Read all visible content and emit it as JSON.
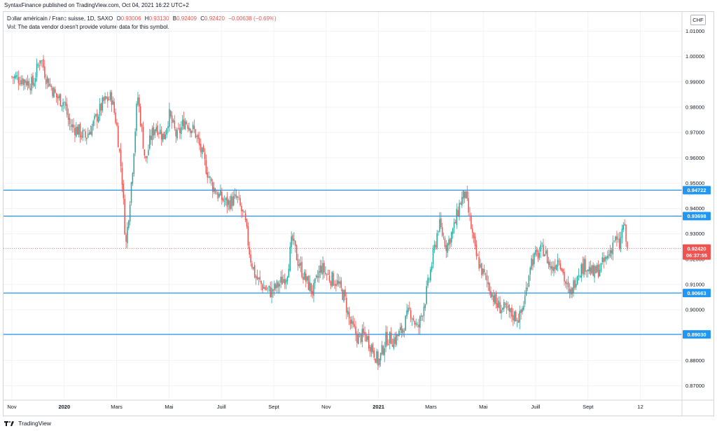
{
  "publisher": "SyntaxFinance published on TradingView.com, Oct 04, 2021 16:22 UTC+2",
  "legend": {
    "symbol": "Dollar américain / Franc suisse, 1D, SAXO",
    "o_label": "O",
    "o_value": "0.93006",
    "h_label": "H",
    "h_value": "0.93130",
    "b_label": "B",
    "b_value": "0.92409",
    "c_label": "C",
    "c_value": "0.92420",
    "change": "−0.00638 (−0.69%)"
  },
  "vol_note": "Vol: The data vendor doesn't provide volume data for this symbol.",
  "currency_button": "CHF",
  "footer_brand": "TradingView",
  "colors": {
    "up": "#26a69a",
    "down": "#ef5350",
    "level_line": "#2196f3",
    "grid": "#f0f3fa",
    "last_price": "#ef5350"
  },
  "chart_data": {
    "type": "candlestick",
    "symbol": "USD/CHF",
    "interval": "1D",
    "grid": true,
    "y_range": [
      0.865,
      1.015
    ],
    "y_ticks": [
      "1.01000",
      "1.00000",
      "0.99000",
      "0.98000",
      "0.97000",
      "0.96000",
      "0.95000",
      "0.94000",
      "0.93000",
      "0.92000",
      "0.91000",
      "0.90000",
      "0.89000",
      "0.88000",
      "0.87000"
    ],
    "x_labels": [
      {
        "label": "Nov",
        "month": 0
      },
      {
        "label": "2020",
        "month": 2
      },
      {
        "label": "Mars",
        "month": 4
      },
      {
        "label": "Mai",
        "month": 6
      },
      {
        "label": "Juill",
        "month": 8
      },
      {
        "label": "Sept",
        "month": 10
      },
      {
        "label": "Nov",
        "month": 12
      },
      {
        "label": "2021",
        "month": 14
      },
      {
        "label": "Mars",
        "month": 16
      },
      {
        "label": "Mai",
        "month": 18
      },
      {
        "label": "Juill",
        "month": 20
      },
      {
        "label": "Sept",
        "month": 22
      },
      {
        "label": "12",
        "month": 24
      }
    ],
    "horizontal_levels": [
      {
        "value": 0.94722,
        "label": "0.94722"
      },
      {
        "value": 0.93698,
        "label": "0.93698"
      },
      {
        "value": 0.90663,
        "label": "0.90663"
      },
      {
        "value": 0.8903,
        "label": "0.89030"
      }
    ],
    "last_price": {
      "value": 0.9242,
      "label": "0.92420",
      "countdown": "06:37:55"
    },
    "price_path": [
      {
        "month": 0.0,
        "close": 0.992
      },
      {
        "month": 0.4,
        "close": 0.991
      },
      {
        "month": 0.8,
        "close": 0.989
      },
      {
        "month": 1.1,
        "close": 1.0
      },
      {
        "month": 1.3,
        "close": 0.992
      },
      {
        "month": 1.7,
        "close": 0.984
      },
      {
        "month": 2.0,
        "close": 0.982
      },
      {
        "month": 2.2,
        "close": 0.973
      },
      {
        "month": 2.5,
        "close": 0.971
      },
      {
        "month": 2.8,
        "close": 0.968
      },
      {
        "month": 3.1,
        "close": 0.973
      },
      {
        "month": 3.5,
        "close": 0.982
      },
      {
        "month": 3.8,
        "close": 0.984
      },
      {
        "month": 4.0,
        "close": 0.973
      },
      {
        "month": 4.2,
        "close": 0.953
      },
      {
        "month": 4.35,
        "close": 0.925
      },
      {
        "month": 4.6,
        "close": 0.955
      },
      {
        "month": 4.8,
        "close": 0.985
      },
      {
        "month": 5.1,
        "close": 0.958
      },
      {
        "month": 5.3,
        "close": 0.968
      },
      {
        "month": 5.5,
        "close": 0.973
      },
      {
        "month": 5.8,
        "close": 0.968
      },
      {
        "month": 6.0,
        "close": 0.977
      },
      {
        "month": 6.3,
        "close": 0.968
      },
      {
        "month": 6.6,
        "close": 0.975
      },
      {
        "month": 7.0,
        "close": 0.97
      },
      {
        "month": 7.3,
        "close": 0.96
      },
      {
        "month": 7.6,
        "close": 0.95
      },
      {
        "month": 7.9,
        "close": 0.945
      },
      {
        "month": 8.2,
        "close": 0.942
      },
      {
        "month": 8.6,
        "close": 0.944
      },
      {
        "month": 8.9,
        "close": 0.935
      },
      {
        "month": 9.1,
        "close": 0.921
      },
      {
        "month": 9.3,
        "close": 0.913
      },
      {
        "month": 9.6,
        "close": 0.909
      },
      {
        "month": 9.9,
        "close": 0.907
      },
      {
        "month": 10.2,
        "close": 0.91
      },
      {
        "month": 10.5,
        "close": 0.914
      },
      {
        "month": 10.7,
        "close": 0.928
      },
      {
        "month": 10.9,
        "close": 0.92
      },
      {
        "month": 11.2,
        "close": 0.912
      },
      {
        "month": 11.5,
        "close": 0.907
      },
      {
        "month": 11.8,
        "close": 0.917
      },
      {
        "month": 12.1,
        "close": 0.913
      },
      {
        "month": 12.4,
        "close": 0.911
      },
      {
        "month": 12.7,
        "close": 0.905
      },
      {
        "month": 12.9,
        "close": 0.895
      },
      {
        "month": 13.2,
        "close": 0.889
      },
      {
        "month": 13.5,
        "close": 0.89
      },
      {
        "month": 13.8,
        "close": 0.884
      },
      {
        "month": 14.0,
        "close": 0.879
      },
      {
        "month": 14.3,
        "close": 0.889
      },
      {
        "month": 14.6,
        "close": 0.888
      },
      {
        "month": 14.9,
        "close": 0.892
      },
      {
        "month": 15.2,
        "close": 0.9
      },
      {
        "month": 15.5,
        "close": 0.892
      },
      {
        "month": 15.8,
        "close": 0.905
      },
      {
        "month": 16.1,
        "close": 0.922
      },
      {
        "month": 16.3,
        "close": 0.934
      },
      {
        "month": 16.6,
        "close": 0.925
      },
      {
        "month": 16.9,
        "close": 0.933
      },
      {
        "month": 17.1,
        "close": 0.942
      },
      {
        "month": 17.3,
        "close": 0.946
      },
      {
        "month": 17.5,
        "close": 0.935
      },
      {
        "month": 17.7,
        "close": 0.922
      },
      {
        "month": 18.0,
        "close": 0.914
      },
      {
        "month": 18.2,
        "close": 0.91
      },
      {
        "month": 18.5,
        "close": 0.902
      },
      {
        "month": 18.8,
        "close": 0.9
      },
      {
        "month": 19.1,
        "close": 0.898
      },
      {
        "month": 19.4,
        "close": 0.897
      },
      {
        "month": 19.6,
        "close": 0.905
      },
      {
        "month": 19.8,
        "close": 0.919
      },
      {
        "month": 20.0,
        "close": 0.921
      },
      {
        "month": 20.3,
        "close": 0.924
      },
      {
        "month": 20.6,
        "close": 0.916
      },
      {
        "month": 20.9,
        "close": 0.921
      },
      {
        "month": 21.1,
        "close": 0.912
      },
      {
        "month": 21.3,
        "close": 0.905
      },
      {
        "month": 21.6,
        "close": 0.915
      },
      {
        "month": 21.9,
        "close": 0.918
      },
      {
        "month": 22.2,
        "close": 0.914
      },
      {
        "month": 22.5,
        "close": 0.917
      },
      {
        "month": 22.8,
        "close": 0.922
      },
      {
        "month": 23.0,
        "close": 0.928
      },
      {
        "month": 23.2,
        "close": 0.925
      },
      {
        "month": 23.35,
        "close": 0.934
      },
      {
        "month": 23.5,
        "close": 0.924
      }
    ]
  }
}
